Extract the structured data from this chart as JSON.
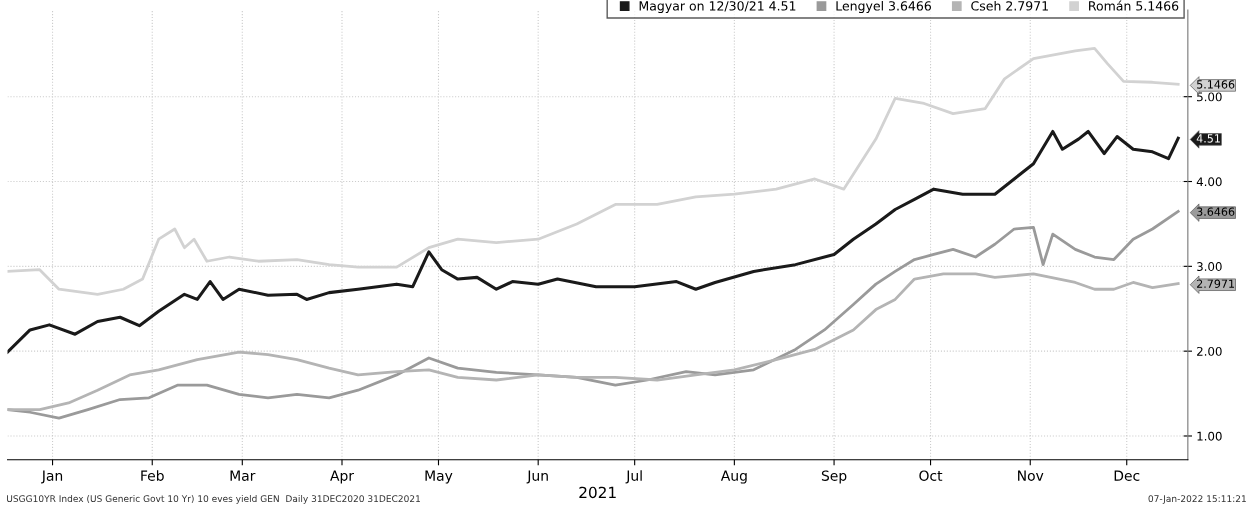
{
  "chart_data": {
    "type": "line",
    "xlabel": "2021",
    "xlim": [
      "2021-01-01",
      "2022-01-03"
    ],
    "ylim": [
      0.72,
      6.02
    ],
    "xticks": [
      {
        "value": "2021-01-15",
        "label": "Jan"
      },
      {
        "value": "2021-02-15",
        "label": "Feb"
      },
      {
        "value": "2021-03-15",
        "label": "Mar"
      },
      {
        "value": "2021-04-15",
        "label": "Apr"
      },
      {
        "value": "2021-05-15",
        "label": "May"
      },
      {
        "value": "2021-06-15",
        "label": "Jun"
      },
      {
        "value": "2021-07-15",
        "label": "Jul"
      },
      {
        "value": "2021-08-15",
        "label": "Aug"
      },
      {
        "value": "2021-09-15",
        "label": "Sep"
      },
      {
        "value": "2021-10-15",
        "label": "Oct"
      },
      {
        "value": "2021-11-15",
        "label": "Nov"
      },
      {
        "value": "2021-12-15",
        "label": "Dec"
      }
    ],
    "yticks": [
      {
        "value": 1,
        "label": "1.00"
      },
      {
        "value": 2,
        "label": "2.00"
      },
      {
        "value": 2.7971,
        "label": "2.7971"
      },
      {
        "value": 3,
        "label": "3.00"
      },
      {
        "value": 3.6466,
        "label": "3.6466"
      },
      {
        "value": 4,
        "label": "4.00"
      },
      {
        "value": 4.51,
        "label": "4.51"
      },
      {
        "value": 5,
        "label": "5.00"
      },
      {
        "value": 5.1466,
        "label": "5.1466"
      }
    ],
    "grid": true,
    "legend": "top right",
    "marker": "none",
    "line_style": "solid",
    "series": [
      {
        "name": "Magyar on 12/30/21 4.51",
        "color": "#1a1a1a",
        "x": [
          "2021-01-01",
          "2021-01-08",
          "2021-01-14",
          "2021-01-22",
          "2021-01-29",
          "2021-02-05",
          "2021-02-11",
          "2021-02-17",
          "2021-02-25",
          "2021-03-01",
          "2021-03-05",
          "2021-03-09",
          "2021-03-14",
          "2021-03-23",
          "2021-04-01",
          "2021-04-04",
          "2021-04-11",
          "2021-04-20",
          "2021-05-02",
          "2021-05-07",
          "2021-05-12",
          "2021-05-16",
          "2021-05-21",
          "2021-05-27",
          "2021-06-02",
          "2021-06-07",
          "2021-06-15",
          "2021-06-21",
          "2021-07-03",
          "2021-07-15",
          "2021-07-28",
          "2021-08-03",
          "2021-08-09",
          "2021-08-21",
          "2021-09-03",
          "2021-09-15",
          "2021-09-21",
          "2021-09-28",
          "2021-10-04",
          "2021-10-10",
          "2021-10-16",
          "2021-10-25",
          "2021-11-04",
          "2021-11-10",
          "2021-11-16",
          "2021-11-22",
          "2021-11-25",
          "2021-11-30",
          "2021-12-03",
          "2021-12-08",
          "2021-12-12",
          "2021-12-17",
          "2021-12-23",
          "2021-12-28",
          "2021-12-31"
        ],
        "values": [
          1.99,
          2.25,
          2.31,
          2.2,
          2.35,
          2.4,
          2.3,
          2.47,
          2.67,
          2.61,
          2.82,
          2.61,
          2.73,
          2.66,
          2.67,
          2.61,
          2.69,
          2.73,
          2.79,
          2.76,
          3.17,
          2.96,
          2.85,
          2.87,
          2.73,
          2.82,
          2.79,
          2.85,
          2.76,
          2.76,
          2.82,
          2.73,
          2.81,
          2.94,
          3.02,
          3.14,
          3.32,
          3.5,
          3.67,
          3.79,
          3.91,
          3.85,
          3.85,
          4.03,
          4.21,
          4.59,
          4.38,
          4.5,
          4.59,
          4.33,
          4.53,
          4.38,
          4.35,
          4.27,
          4.51
        ]
      },
      {
        "name": "Lengyel 3.6466",
        "color": "#9a9a9a",
        "x": [
          "2021-01-01",
          "2021-01-08",
          "2021-01-17",
          "2021-01-26",
          "2021-02-05",
          "2021-02-14",
          "2021-02-23",
          "2021-03-04",
          "2021-03-14",
          "2021-03-23",
          "2021-04-01",
          "2021-04-11",
          "2021-04-20",
          "2021-05-02",
          "2021-05-12",
          "2021-05-21",
          "2021-06-02",
          "2021-06-15",
          "2021-06-27",
          "2021-07-09",
          "2021-07-19",
          "2021-07-31",
          "2021-08-09",
          "2021-08-21",
          "2021-09-03",
          "2021-09-12",
          "2021-09-21",
          "2021-09-28",
          "2021-10-04",
          "2021-10-10",
          "2021-10-16",
          "2021-10-22",
          "2021-10-29",
          "2021-11-04",
          "2021-11-10",
          "2021-11-16",
          "2021-11-19",
          "2021-11-22",
          "2021-11-29",
          "2021-12-05",
          "2021-12-11",
          "2021-12-17",
          "2021-12-23",
          "2021-12-31"
        ],
        "values": [
          1.31,
          1.28,
          1.21,
          1.31,
          1.43,
          1.45,
          1.6,
          1.6,
          1.49,
          1.45,
          1.49,
          1.45,
          1.54,
          1.72,
          1.92,
          1.8,
          1.75,
          1.72,
          1.69,
          1.6,
          1.66,
          1.76,
          1.72,
          1.78,
          2.02,
          2.25,
          2.55,
          2.79,
          2.94,
          3.08,
          3.14,
          3.2,
          3.11,
          3.26,
          3.44,
          3.46,
          3.02,
          3.38,
          3.2,
          3.11,
          3.08,
          3.32,
          3.44,
          3.6466
        ]
      },
      {
        "name": "Cseh 2.7971",
        "color": "#b4b4b4",
        "x": [
          "2021-01-01",
          "2021-01-11",
          "2021-01-20",
          "2021-01-29",
          "2021-02-08",
          "2021-02-17",
          "2021-03-01",
          "2021-03-14",
          "2021-03-23",
          "2021-04-01",
          "2021-04-11",
          "2021-04-20",
          "2021-05-02",
          "2021-05-12",
          "2021-05-21",
          "2021-06-02",
          "2021-06-15",
          "2021-06-27",
          "2021-07-09",
          "2021-07-22",
          "2021-08-03",
          "2021-08-15",
          "2021-08-28",
          "2021-09-09",
          "2021-09-21",
          "2021-09-28",
          "2021-10-04",
          "2021-10-10",
          "2021-10-19",
          "2021-10-29",
          "2021-11-04",
          "2021-11-16",
          "2021-11-29",
          "2021-12-05",
          "2021-12-11",
          "2021-12-17",
          "2021-12-23",
          "2021-12-31"
        ],
        "values": [
          1.31,
          1.31,
          1.39,
          1.54,
          1.72,
          1.78,
          1.9,
          1.99,
          1.96,
          1.9,
          1.8,
          1.72,
          1.76,
          1.78,
          1.69,
          1.66,
          1.72,
          1.69,
          1.69,
          1.66,
          1.72,
          1.78,
          1.9,
          2.02,
          2.25,
          2.49,
          2.61,
          2.85,
          2.91,
          2.91,
          2.87,
          2.91,
          2.81,
          2.73,
          2.73,
          2.81,
          2.75,
          2.7971
        ]
      },
      {
        "name": "Román 5.1466",
        "color": "#d2d2d2",
        "x": [
          "2021-01-01",
          "2021-01-11",
          "2021-01-17",
          "2021-01-29",
          "2021-02-06",
          "2021-02-12",
          "2021-02-17",
          "2021-02-22",
          "2021-02-25",
          "2021-02-28",
          "2021-03-04",
          "2021-03-11",
          "2021-03-20",
          "2021-04-01",
          "2021-04-11",
          "2021-04-20",
          "2021-05-02",
          "2021-05-12",
          "2021-05-21",
          "2021-06-02",
          "2021-06-15",
          "2021-06-27",
          "2021-07-09",
          "2021-07-22",
          "2021-08-03",
          "2021-08-15",
          "2021-08-28",
          "2021-09-09",
          "2021-09-18",
          "2021-09-28",
          "2021-10-04",
          "2021-10-13",
          "2021-10-22",
          "2021-11-01",
          "2021-11-07",
          "2021-11-16",
          "2021-11-29",
          "2021-12-05",
          "2021-12-09",
          "2021-12-14",
          "2021-12-23",
          "2021-12-31"
        ],
        "values": [
          2.94,
          2.96,
          2.73,
          2.67,
          2.73,
          2.85,
          3.32,
          3.44,
          3.22,
          3.32,
          3.06,
          3.11,
          3.06,
          3.08,
          3.02,
          2.99,
          2.99,
          3.22,
          3.32,
          3.28,
          3.32,
          3.5,
          3.73,
          3.73,
          3.82,
          3.85,
          3.91,
          4.03,
          3.91,
          4.5,
          4.98,
          4.92,
          4.8,
          4.86,
          5.21,
          5.45,
          5.54,
          5.57,
          5.39,
          5.18,
          5.17,
          5.1466
        ]
      }
    ],
    "annotations": [
      "USGG10YR Index (US Generic Govt 10 Yr) 10 eves yield GEN  Daily 31DEC2020 31DEC2021",
      "07-Jan-2022 15:11:21"
    ]
  }
}
